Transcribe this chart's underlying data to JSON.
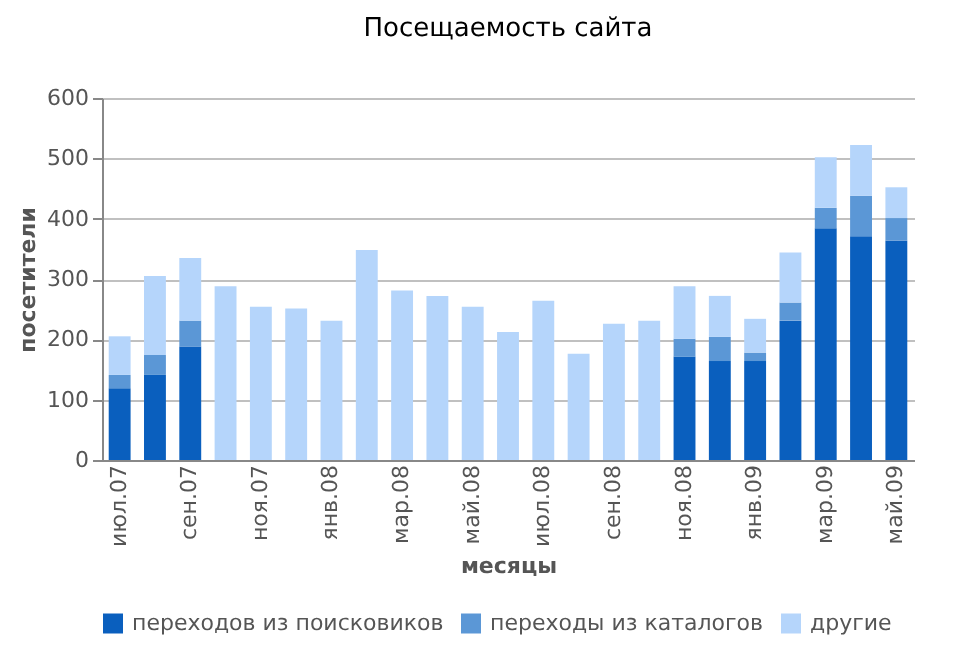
{
  "chart_data": {
    "type": "bar",
    "title": "Посещаемость сайта",
    "xlabel": "месяцы",
    "ylabel": "посетители",
    "stacked": true,
    "grid": "y",
    "legend": "bottom",
    "categories": [
      "июл.07",
      null,
      "сен.07",
      null,
      "ноя.07",
      null,
      "янв.08",
      null,
      "мар.08",
      null,
      "май.08",
      null,
      "июл.08",
      null,
      "сен.08",
      null,
      "ноя.08",
      null,
      "янв.09",
      null,
      "мар.09",
      null,
      "май.09"
    ],
    "ylim": [
      0,
      600
    ],
    "yticks": [
      0,
      100,
      200,
      300,
      400,
      500,
      600
    ],
    "series": [
      {
        "name": "переходов из поисковиков",
        "color": "#0a5fbe",
        "values": [
          119,
          141,
          188,
          null,
          null,
          null,
          null,
          null,
          null,
          null,
          null,
          null,
          null,
          null,
          null,
          null,
          171,
          164,
          164,
          231,
          384,
          371,
          364
        ]
      },
      {
        "name": "переходы из каталогов",
        "color": "#5b97d6",
        "values": [
          22,
          33,
          43,
          null,
          null,
          null,
          null,
          null,
          null,
          null,
          null,
          null,
          null,
          null,
          null,
          null,
          30,
          40,
          14,
          30,
          34,
          67,
          37
        ]
      },
      {
        "name": "другие",
        "color": "#b5d5fb",
        "values": [
          64,
          131,
          104,
          288,
          254,
          251,
          231,
          348,
          281,
          272,
          254,
          212,
          264,
          176,
          226,
          231,
          87,
          68,
          56,
          83,
          84,
          84,
          51
        ]
      }
    ]
  }
}
